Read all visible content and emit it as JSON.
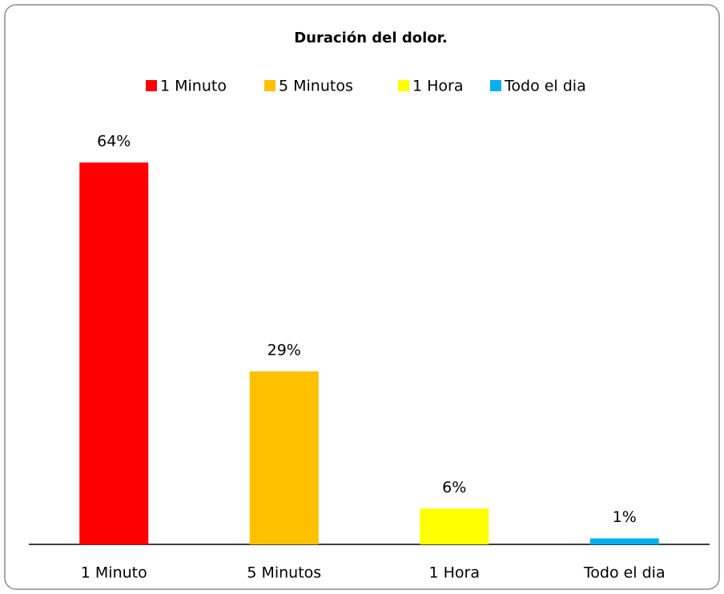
{
  "chart_data": {
    "type": "bar",
    "title": "Duración del dolor.",
    "categories": [
      "1 Minuto",
      "5 Minutos",
      "1 Hora",
      "Todo el dia"
    ],
    "values": [
      64,
      29,
      6,
      1
    ],
    "value_labels": [
      "64%",
      "29%",
      "6%",
      "1%"
    ],
    "colors": [
      "#ff0000",
      "#ffc000",
      "#ffff00",
      "#00b0f0"
    ],
    "legend": "top"
  }
}
